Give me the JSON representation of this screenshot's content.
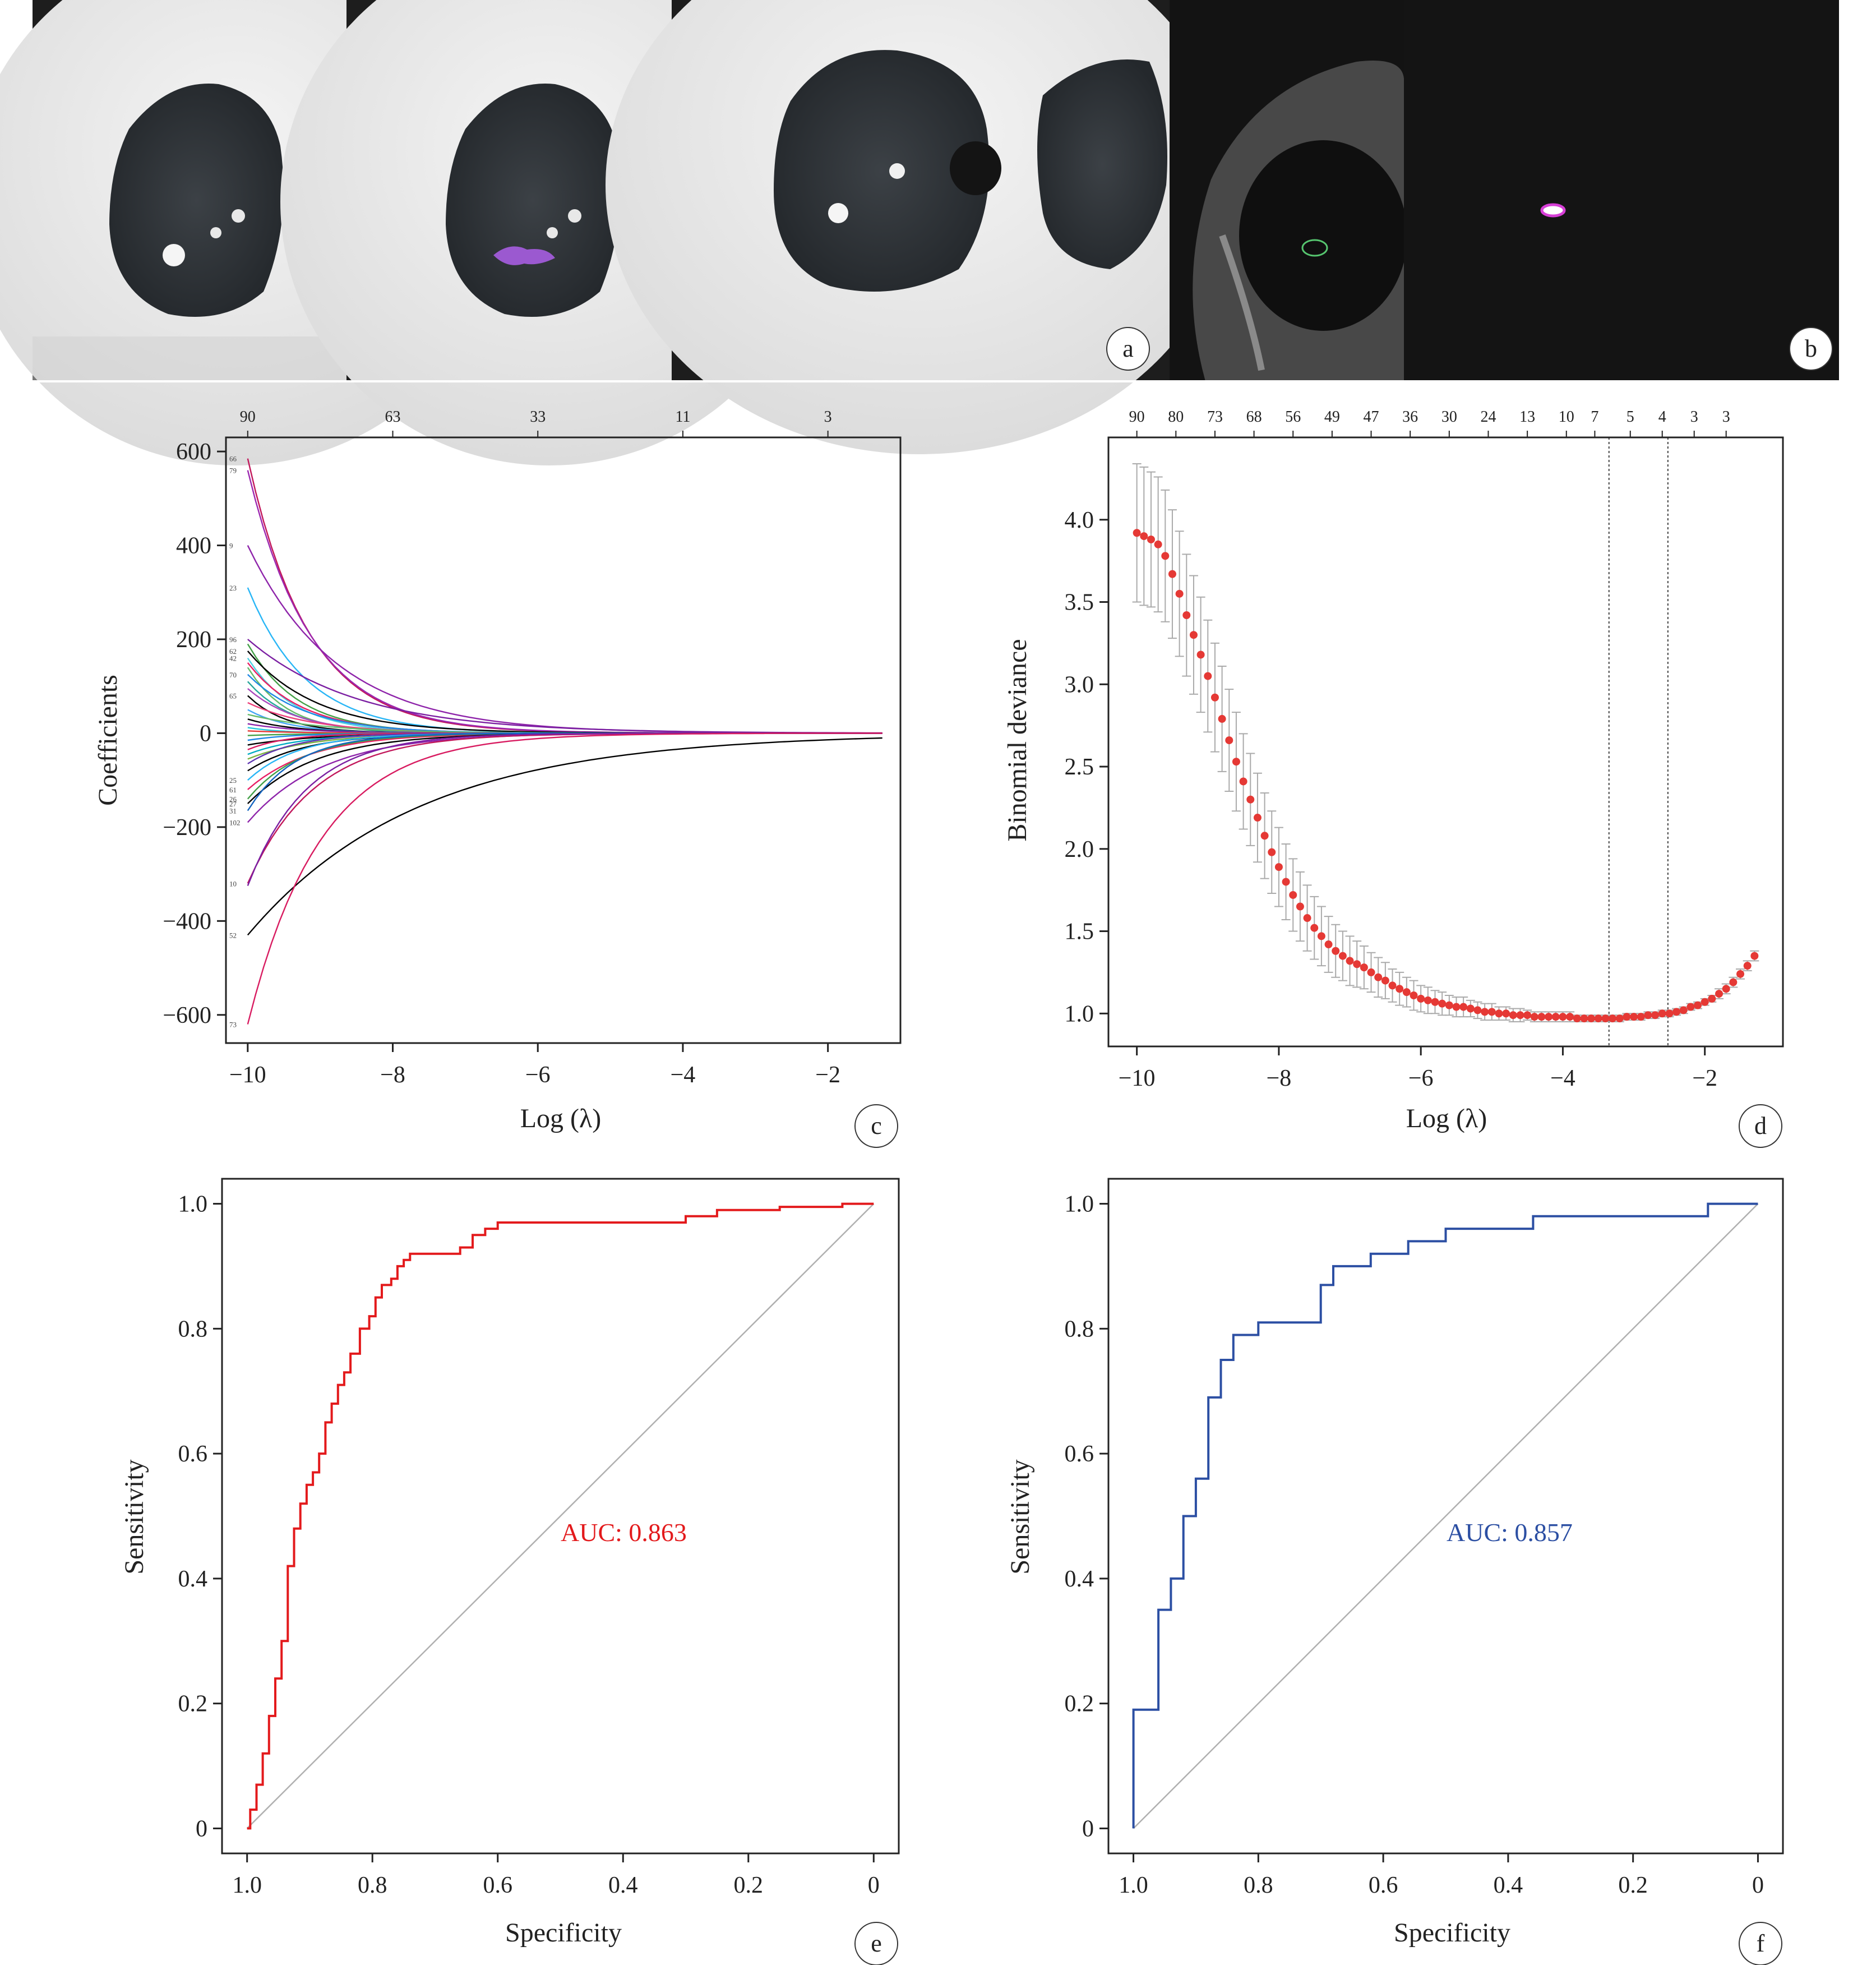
{
  "panel_letters": [
    "a",
    "b",
    "c",
    "d",
    "e",
    "f"
  ],
  "chart_data": [
    {
      "id": "c",
      "type": "line",
      "xlabel": "Log (λ)",
      "ylabel": "Coefficients",
      "xlim": [
        -10.3,
        -1.0
      ],
      "ylim": [
        -660,
        630
      ],
      "xticks": [
        -10,
        -8,
        -6,
        -4,
        -2
      ],
      "xtick_labels": [
        "−10",
        "−8",
        "−6",
        "−4",
        "−2"
      ],
      "yticks": [
        600,
        400,
        200,
        0,
        -200,
        -400,
        -600
      ],
      "ytick_labels": [
        "600",
        "400",
        "200",
        "0",
        "−200",
        "−400",
        "−600"
      ],
      "top_axis": {
        "positions": [
          -10,
          -8,
          -6,
          -4,
          -2
        ],
        "labels": [
          "90",
          "63",
          "33",
          "11",
          "3"
        ]
      },
      "x_range": [
        -10.0,
        -1.25
      ],
      "series": [
        {
          "label": "66",
          "start": 585,
          "decay": 1.25,
          "color": "#c2185b"
        },
        {
          "label": "79",
          "start": 560,
          "decay": 1.2,
          "color": "#9c27b0"
        },
        {
          "label": "9",
          "start": 400,
          "decay": 0.85,
          "color": "#8e24aa"
        },
        {
          "label": "23",
          "start": 310,
          "decay": 1.3,
          "color": "#29b6f6"
        },
        {
          "label": "96",
          "start": 200,
          "decay": 0.7,
          "color": "#7b1fa2"
        },
        {
          "label": "",
          "start": 190,
          "decay": 1.5,
          "color": "#43a047"
        },
        {
          "label": "62",
          "start": 175,
          "decay": 1.1,
          "color": "#000000"
        },
        {
          "label": "42",
          "start": 160,
          "decay": 1.6,
          "color": "#4dd0e1"
        },
        {
          "label": "",
          "start": 150,
          "decay": 1.4,
          "color": "#e91e63"
        },
        {
          "label": "",
          "start": 140,
          "decay": 1.9,
          "color": "#66bb6a"
        },
        {
          "label": "70",
          "start": 125,
          "decay": 1.3,
          "color": "#1e88e5"
        },
        {
          "label": "",
          "start": 110,
          "decay": 1.7,
          "color": "#26a69a"
        },
        {
          "label": "",
          "start": 95,
          "decay": 1.5,
          "color": "#ab47bc"
        },
        {
          "label": "65",
          "start": 80,
          "decay": 2.0,
          "color": "#000000"
        },
        {
          "label": "",
          "start": 65,
          "decay": 1.2,
          "color": "#ec407a"
        },
        {
          "label": "",
          "start": 50,
          "decay": 1.8,
          "color": "#42a5f5"
        },
        {
          "label": "",
          "start": 40,
          "decay": 1.0,
          "color": "#66bb6a"
        },
        {
          "label": "",
          "start": 30,
          "decay": 1.6,
          "color": "#000000"
        },
        {
          "label": "",
          "start": 20,
          "decay": 1.4,
          "color": "#8e24aa"
        },
        {
          "label": "",
          "start": 12,
          "decay": 2.2,
          "color": "#26c6da"
        },
        {
          "label": "",
          "start": 5,
          "decay": 1.5,
          "color": "#e53935"
        },
        {
          "label": "",
          "start": -5,
          "decay": 1.3,
          "color": "#43a047"
        },
        {
          "label": "",
          "start": -15,
          "decay": 1.7,
          "color": "#1e88e5"
        },
        {
          "label": "",
          "start": -25,
          "decay": 1.1,
          "color": "#000000"
        },
        {
          "label": "",
          "start": -35,
          "decay": 1.9,
          "color": "#d81b60"
        },
        {
          "label": "",
          "start": -45,
          "decay": 1.4,
          "color": "#00acc1"
        },
        {
          "label": "",
          "start": -55,
          "decay": 1.2,
          "color": "#7cb342"
        },
        {
          "label": "",
          "start": -65,
          "decay": 1.6,
          "color": "#5e35b1"
        },
        {
          "label": "",
          "start": -80,
          "decay": 1.3,
          "color": "#000000"
        },
        {
          "label": "25",
          "start": -100,
          "decay": 1.5,
          "color": "#29b6f6"
        },
        {
          "label": "61",
          "start": -120,
          "decay": 1.2,
          "color": "#e91e63"
        },
        {
          "label": "26",
          "start": -140,
          "decay": 1.4,
          "color": "#43a047"
        },
        {
          "label": "27",
          "start": -150,
          "decay": 1.1,
          "color": "#000000"
        },
        {
          "label": "31",
          "start": -165,
          "decay": 1.6,
          "color": "#1565c0"
        },
        {
          "label": "102",
          "start": -190,
          "decay": 1.0,
          "color": "#8e24aa"
        },
        {
          "label": "10",
          "start": -320,
          "decay": 1.15,
          "color": "#c2185b"
        },
        {
          "label": "",
          "start": -325,
          "decay": 1.3,
          "color": "#7b1fa2"
        },
        {
          "label": "52",
          "start": -430,
          "decay": 0.45,
          "color": "#000000"
        },
        {
          "label": "73",
          "start": -620,
          "decay": 1.05,
          "color": "#d81b60"
        }
      ]
    },
    {
      "id": "d",
      "type": "scatter",
      "xlabel": "Log (λ)",
      "ylabel": "Binomial deviance",
      "xlim": [
        -10.4,
        -0.9
      ],
      "ylim": [
        0.8,
        4.5
      ],
      "xticks": [
        -10,
        -8,
        -6,
        -4,
        -2
      ],
      "xtick_labels": [
        "−10",
        "−8",
        "−6",
        "−4",
        "−2"
      ],
      "yticks": [
        1.0,
        1.5,
        2.0,
        2.5,
        3.0,
        3.5,
        4.0
      ],
      "ytick_labels": [
        "1.0",
        "1.5",
        "2.0",
        "2.5",
        "3.0",
        "3.5",
        "4.0"
      ],
      "top_axis": {
        "positions": [
          -10.0,
          -9.45,
          -8.9,
          -8.35,
          -7.8,
          -7.25,
          -6.7,
          -6.15,
          -5.6,
          -5.05,
          -4.5,
          -3.95,
          -3.55,
          -3.05,
          -2.6,
          -2.15,
          -1.7
        ],
        "labels": [
          "90",
          "80",
          "73",
          "68",
          "56",
          "49",
          "47",
          "36",
          "30",
          "24",
          "13",
          "10",
          "7",
          "5",
          "4",
          "3",
          "3"
        ]
      },
      "vlines": [
        -3.35,
        -2.52
      ],
      "x": [
        -10.0,
        -9.9,
        -9.8,
        -9.7,
        -9.6,
        -9.5,
        -9.4,
        -9.3,
        -9.2,
        -9.1,
        -9.0,
        -8.9,
        -8.8,
        -8.7,
        -8.6,
        -8.5,
        -8.4,
        -8.3,
        -8.2,
        -8.1,
        -8.0,
        -7.9,
        -7.8,
        -7.7,
        -7.6,
        -7.5,
        -7.4,
        -7.3,
        -7.2,
        -7.1,
        -7.0,
        -6.9,
        -6.8,
        -6.7,
        -6.6,
        -6.5,
        -6.4,
        -6.3,
        -6.2,
        -6.1,
        -6.0,
        -5.9,
        -5.8,
        -5.7,
        -5.6,
        -5.5,
        -5.4,
        -5.3,
        -5.2,
        -5.1,
        -5.0,
        -4.9,
        -4.8,
        -4.7,
        -4.6,
        -4.5,
        -4.4,
        -4.3,
        -4.2,
        -4.1,
        -4.0,
        -3.9,
        -3.8,
        -3.7,
        -3.6,
        -3.5,
        -3.4,
        -3.3,
        -3.2,
        -3.1,
        -3.0,
        -2.9,
        -2.8,
        -2.7,
        -2.6,
        -2.5,
        -2.4,
        -2.3,
        -2.2,
        -2.1,
        -2.0,
        -1.9,
        -1.8,
        -1.7,
        -1.6,
        -1.5,
        -1.4,
        -1.3
      ],
      "y": [
        3.92,
        3.9,
        3.88,
        3.85,
        3.78,
        3.67,
        3.55,
        3.42,
        3.3,
        3.18,
        3.05,
        2.92,
        2.79,
        2.66,
        2.53,
        2.41,
        2.3,
        2.19,
        2.08,
        1.98,
        1.89,
        1.8,
        1.72,
        1.65,
        1.58,
        1.52,
        1.47,
        1.42,
        1.38,
        1.35,
        1.32,
        1.3,
        1.28,
        1.25,
        1.22,
        1.2,
        1.17,
        1.15,
        1.13,
        1.11,
        1.09,
        1.08,
        1.07,
        1.06,
        1.05,
        1.04,
        1.04,
        1.03,
        1.02,
        1.01,
        1.01,
        1.0,
        1.0,
        0.99,
        0.99,
        0.99,
        0.98,
        0.98,
        0.98,
        0.98,
        0.98,
        0.98,
        0.97,
        0.97,
        0.97,
        0.97,
        0.97,
        0.97,
        0.97,
        0.98,
        0.98,
        0.98,
        0.99,
        0.99,
        1.0,
        1.0,
        1.01,
        1.02,
        1.04,
        1.05,
        1.07,
        1.09,
        1.12,
        1.15,
        1.19,
        1.24,
        1.29,
        1.35
      ],
      "err": [
        0.42,
        0.42,
        0.41,
        0.41,
        0.4,
        0.39,
        0.38,
        0.37,
        0.36,
        0.35,
        0.34,
        0.33,
        0.32,
        0.31,
        0.3,
        0.29,
        0.28,
        0.27,
        0.26,
        0.25,
        0.24,
        0.23,
        0.22,
        0.21,
        0.2,
        0.19,
        0.18,
        0.17,
        0.16,
        0.15,
        0.15,
        0.14,
        0.13,
        0.12,
        0.12,
        0.11,
        0.1,
        0.1,
        0.09,
        0.09,
        0.08,
        0.08,
        0.07,
        0.07,
        0.06,
        0.06,
        0.06,
        0.05,
        0.05,
        0.05,
        0.05,
        0.04,
        0.04,
        0.04,
        0.04,
        0.03,
        0.03,
        0.03,
        0.03,
        0.03,
        0.03,
        0.03,
        0.02,
        0.02,
        0.02,
        0.02,
        0.02,
        0.02,
        0.02,
        0.02,
        0.02,
        0.02,
        0.02,
        0.02,
        0.02,
        0.02,
        0.02,
        0.02,
        0.02,
        0.02,
        0.02,
        0.02,
        0.03,
        0.03,
        0.03,
        0.03,
        0.03,
        0.03
      ],
      "point_color": "#e53935",
      "err_color": "#aaaaaa"
    },
    {
      "id": "e",
      "type": "line",
      "xlabel": "Specificity",
      "ylabel": "Sensitivity",
      "xlim": [
        1.04,
        -0.04
      ],
      "ylim": [
        -0.04,
        1.04
      ],
      "xticks": [
        1.0,
        0.8,
        0.6,
        0.4,
        0.2,
        0
      ],
      "xtick_labels": [
        "1.0",
        "0.8",
        "0.6",
        "0.4",
        "0.2",
        "0"
      ],
      "yticks": [
        0,
        0.2,
        0.4,
        0.6,
        0.8,
        1.0
      ],
      "ytick_labels": [
        "0",
        "0.2",
        "0.4",
        "0.6",
        "0.8",
        "1.0"
      ],
      "annotation": "AUC: 0.863",
      "color": "#e31a1c",
      "specificity": [
        1.0,
        0.995,
        0.995,
        0.985,
        0.985,
        0.975,
        0.975,
        0.965,
        0.965,
        0.955,
        0.955,
        0.945,
        0.945,
        0.935,
        0.935,
        0.925,
        0.925,
        0.915,
        0.915,
        0.905,
        0.905,
        0.895,
        0.895,
        0.885,
        0.885,
        0.875,
        0.875,
        0.865,
        0.865,
        0.855,
        0.855,
        0.845,
        0.845,
        0.835,
        0.835,
        0.82,
        0.82,
        0.805,
        0.805,
        0.795,
        0.795,
        0.785,
        0.785,
        0.77,
        0.77,
        0.76,
        0.76,
        0.75,
        0.75,
        0.74,
        0.74,
        0.66,
        0.66,
        0.64,
        0.64,
        0.62,
        0.62,
        0.6,
        0.6,
        0.3,
        0.3,
        0.25,
        0.25,
        0.15,
        0.15,
        0.05,
        0.05,
        0.0
      ],
      "sensitivity": [
        0.0,
        0.0,
        0.03,
        0.03,
        0.07,
        0.07,
        0.12,
        0.12,
        0.18,
        0.18,
        0.24,
        0.24,
        0.3,
        0.3,
        0.42,
        0.42,
        0.48,
        0.48,
        0.52,
        0.52,
        0.55,
        0.55,
        0.57,
        0.57,
        0.6,
        0.6,
        0.65,
        0.65,
        0.68,
        0.68,
        0.71,
        0.71,
        0.73,
        0.73,
        0.76,
        0.76,
        0.8,
        0.8,
        0.82,
        0.82,
        0.85,
        0.85,
        0.87,
        0.87,
        0.88,
        0.88,
        0.9,
        0.9,
        0.91,
        0.91,
        0.92,
        0.92,
        0.93,
        0.93,
        0.95,
        0.95,
        0.96,
        0.96,
        0.97,
        0.97,
        0.98,
        0.98,
        0.99,
        0.99,
        0.995,
        0.995,
        1.0,
        1.0
      ]
    },
    {
      "id": "f",
      "type": "line",
      "xlabel": "Specificity",
      "ylabel": "Sensitivity",
      "xlim": [
        1.04,
        -0.04
      ],
      "ylim": [
        -0.04,
        1.04
      ],
      "xticks": [
        1.0,
        0.8,
        0.6,
        0.4,
        0.2,
        0
      ],
      "xtick_labels": [
        "1.0",
        "0.8",
        "0.6",
        "0.4",
        "0.2",
        "0"
      ],
      "yticks": [
        0,
        0.2,
        0.4,
        0.6,
        0.8,
        1.0
      ],
      "ytick_labels": [
        "0",
        "0.2",
        "0.4",
        "0.6",
        "0.8",
        "1.0"
      ],
      "annotation": "AUC: 0.857",
      "color": "#2c4fa3",
      "specificity": [
        1.0,
        1.0,
        0.96,
        0.96,
        0.94,
        0.94,
        0.92,
        0.92,
        0.9,
        0.9,
        0.88,
        0.88,
        0.86,
        0.86,
        0.84,
        0.84,
        0.8,
        0.8,
        0.7,
        0.7,
        0.68,
        0.68,
        0.62,
        0.62,
        0.56,
        0.56,
        0.5,
        0.5,
        0.36,
        0.36,
        0.08,
        0.08,
        0.0
      ],
      "sensitivity": [
        0.0,
        0.19,
        0.19,
        0.35,
        0.35,
        0.4,
        0.4,
        0.5,
        0.5,
        0.56,
        0.56,
        0.69,
        0.69,
        0.75,
        0.75,
        0.79,
        0.79,
        0.81,
        0.81,
        0.87,
        0.87,
        0.9,
        0.9,
        0.92,
        0.92,
        0.94,
        0.94,
        0.96,
        0.96,
        0.98,
        0.98,
        1.0,
        1.0
      ]
    }
  ]
}
